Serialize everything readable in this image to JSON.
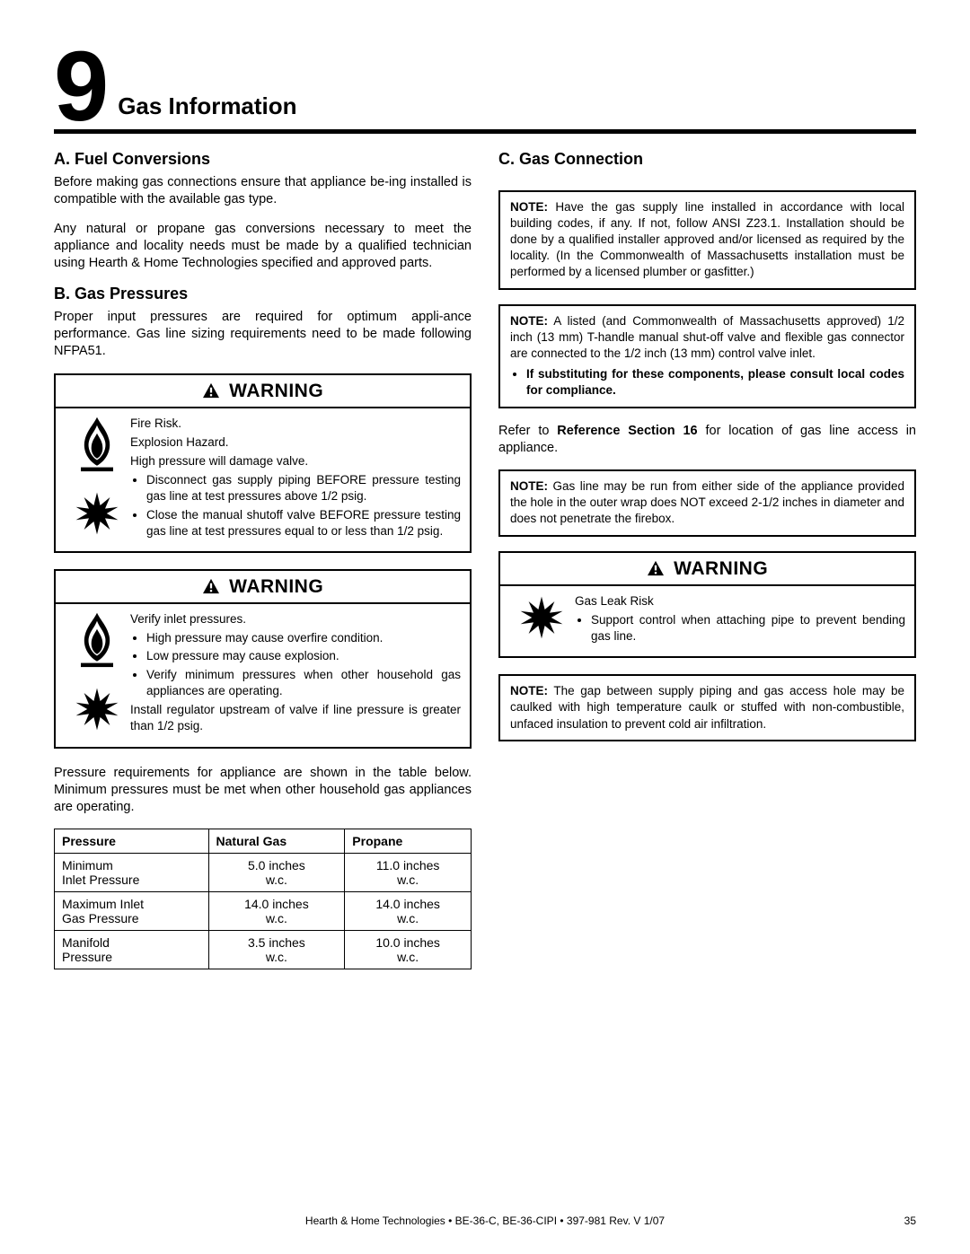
{
  "chapter": {
    "number": "9",
    "title": "Gas Information"
  },
  "left": {
    "secA": {
      "heading": "A.  Fuel Conversions",
      "p1": "Before making gas connections ensure that appliance be-ing installed is compatible with the available gas type.",
      "p2": "Any natural or propane gas conversions necessary to meet the appliance and locality needs must be made by a qualiﬁed technician using Hearth & Home Technologies speciﬁed and approved parts."
    },
    "secB": {
      "heading": "B.  Gas Pressures",
      "p1": "Proper input pressures are required for optimum appli-ance performance. Gas line sizing requirements need to be made following NFPA51."
    },
    "warn1": {
      "title": "WARNING",
      "l1": "Fire Risk.",
      "l2": "Explosion Hazard.",
      "l3": "High pressure will damage valve.",
      "b1": "Disconnect gas supply piping BEFORE pressure testing gas line at test pressures above 1/2 psig.",
      "b2": "Close the manual shutoff valve BEFORE pressure testing gas line at test pressures equal to or less than 1/2 psig."
    },
    "warn2": {
      "title": "WARNING",
      "l1": "Verify inlet pressures.",
      "b1": "High pressure may cause overﬁre condition.",
      "b2": "Low pressure may cause explosion.",
      "b3": "Verify minimum pressures when other household gas appliances are operating.",
      "l2": "Install regulator upstream of valve if line pressure is greater than 1/2 psig."
    },
    "tableIntro": "Pressure requirements for appliance are shown in the table below. Minimum pressures must be met when other household gas appliances are operating.",
    "table": {
      "headers": [
        "Pressure",
        "Natural Gas",
        "Propane"
      ],
      "rows": [
        {
          "label": "Minimum\nInlet Pressure",
          "ng": "5.0 inches\nw.c.",
          "lp": "11.0 inches\nw.c."
        },
        {
          "label": "Maximum Inlet\nGas Pressure",
          "ng": "14.0 inches\nw.c.",
          "lp": "14.0 inches\nw.c."
        },
        {
          "label": "Manifold\nPressure",
          "ng": "3.5 inches\nw.c.",
          "lp": "10.0 inches\nw.c."
        }
      ]
    }
  },
  "right": {
    "secC": {
      "heading": "C.  Gas Connection"
    },
    "note1": "Have the gas supply line installed in accordance with local building codes, if any. If not, follow ANSI Z23.1. Installation should be done by a qualiﬁed installer approved and/or licensed as required by the locality. (In the Commonwealth of Massachusetts installation must be performed by a licensed plumber or gasﬁtter.)",
    "note2a": "A listed (and Commonwealth of Massachusetts approved) 1/2 inch (13 mm) T-handle manual shut-off valve and ﬂexible gas connector are connected to the 1/2 inch (13 mm) control valve inlet.",
    "note2b": "If substituting for these components, please consult local codes for compliance.",
    "refPara_a": "Refer to ",
    "refPara_b": "Reference Section 16",
    "refPara_c": " for location of gas line access in appliance.",
    "note3": "Gas line may be run from either side of the appliance provided the hole in the outer wrap does NOT exceed 2-1/2 inches in diameter and does not penetrate the ﬁrebox.",
    "warn3": {
      "title": "WARNING",
      "l1": "Gas Leak Risk",
      "b1": "Support control when attaching pipe to prevent bending gas line."
    },
    "note4": "The gap between supply piping and gas access hole may be caulked with high temperature caulk or stuffed with non-combustible, unfaced insulation to prevent cold air inﬁltration."
  },
  "footer": {
    "center": "Hearth & Home Technologies  •  BE-36-C, BE-36-CIPI  •  397-981 Rev. V  1/07",
    "page": "35"
  },
  "noteLabel": "NOTE:"
}
